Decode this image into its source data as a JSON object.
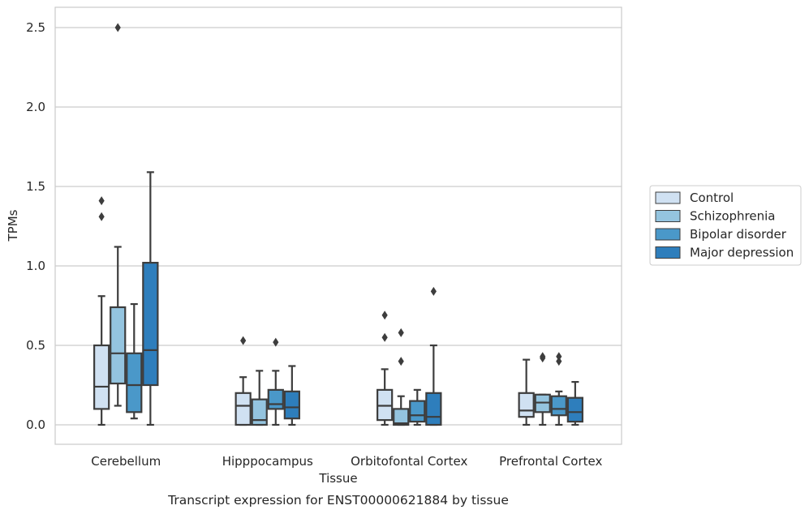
{
  "chart_data": {
    "type": "boxplot",
    "title": "Transcript expression for ENST00000621884 by tissue",
    "xlabel": "Tissue",
    "ylabel": "TPMs",
    "ylim": [
      -0.12,
      2.63
    ],
    "yticks": [
      0.0,
      0.5,
      1.0,
      1.5,
      2.0,
      2.5
    ],
    "ytick_labels": [
      "0.0",
      "0.5",
      "1.0",
      "1.5",
      "2.0",
      "2.5"
    ],
    "grid": "horizontal",
    "legend_position": "right",
    "categories": [
      "Cerebellum",
      "Hipppocampus",
      "Orbitofontal Cortex",
      "Prefrontal Cortex"
    ],
    "series": [
      {
        "name": "Control",
        "color": "#d0e1f2",
        "boxes": [
          {
            "whisker_low": 0.0,
            "q1": 0.1,
            "median": 0.24,
            "q3": 0.5,
            "whisker_high": 0.81,
            "outliers": [
              1.31,
              1.41
            ]
          },
          {
            "whisker_low": 0.0,
            "q1": 0.0,
            "median": 0.12,
            "q3": 0.2,
            "whisker_high": 0.3,
            "outliers": [
              0.53
            ]
          },
          {
            "whisker_low": 0.0,
            "q1": 0.03,
            "median": 0.12,
            "q3": 0.22,
            "whisker_high": 0.35,
            "outliers": [
              0.55,
              0.69
            ]
          },
          {
            "whisker_low": 0.0,
            "q1": 0.05,
            "median": 0.09,
            "q3": 0.2,
            "whisker_high": 0.41,
            "outliers": []
          }
        ]
      },
      {
        "name": "Schizophrenia",
        "color": "#94c4df",
        "boxes": [
          {
            "whisker_low": 0.12,
            "q1": 0.26,
            "median": 0.45,
            "q3": 0.74,
            "whisker_high": 1.12,
            "outliers": [
              2.5
            ]
          },
          {
            "whisker_low": 0.0,
            "q1": 0.0,
            "median": 0.03,
            "q3": 0.16,
            "whisker_high": 0.34,
            "outliers": []
          },
          {
            "whisker_low": 0.0,
            "q1": 0.0,
            "median": 0.01,
            "q3": 0.1,
            "whisker_high": 0.18,
            "outliers": [
              0.4,
              0.58
            ]
          },
          {
            "whisker_low": 0.0,
            "q1": 0.08,
            "median": 0.14,
            "q3": 0.19,
            "whisker_high": 0.19,
            "outliers": [
              0.42,
              0.43
            ]
          }
        ]
      },
      {
        "name": "Bipolar disorder",
        "color": "#4a98c9",
        "boxes": [
          {
            "whisker_low": 0.04,
            "q1": 0.08,
            "median": 0.25,
            "q3": 0.45,
            "whisker_high": 0.76,
            "outliers": []
          },
          {
            "whisker_low": 0.0,
            "q1": 0.1,
            "median": 0.13,
            "q3": 0.22,
            "whisker_high": 0.34,
            "outliers": [
              0.52
            ]
          },
          {
            "whisker_low": 0.0,
            "q1": 0.02,
            "median": 0.06,
            "q3": 0.15,
            "whisker_high": 0.22,
            "outliers": []
          },
          {
            "whisker_low": 0.0,
            "q1": 0.06,
            "median": 0.1,
            "q3": 0.18,
            "whisker_high": 0.21,
            "outliers": [
              0.4,
              0.43
            ]
          }
        ]
      },
      {
        "name": "Major depression",
        "color": "#2e7ebc",
        "boxes": [
          {
            "whisker_low": 0.0,
            "q1": 0.25,
            "median": 0.47,
            "q3": 1.02,
            "whisker_high": 1.59,
            "outliers": []
          },
          {
            "whisker_low": 0.0,
            "q1": 0.04,
            "median": 0.11,
            "q3": 0.21,
            "whisker_high": 0.37,
            "outliers": []
          },
          {
            "whisker_low": 0.0,
            "q1": 0.0,
            "median": 0.05,
            "q3": 0.2,
            "whisker_high": 0.5,
            "outliers": [
              0.84
            ]
          },
          {
            "whisker_low": 0.0,
            "q1": 0.02,
            "median": 0.08,
            "q3": 0.17,
            "whisker_high": 0.27,
            "outliers": []
          }
        ]
      }
    ]
  }
}
